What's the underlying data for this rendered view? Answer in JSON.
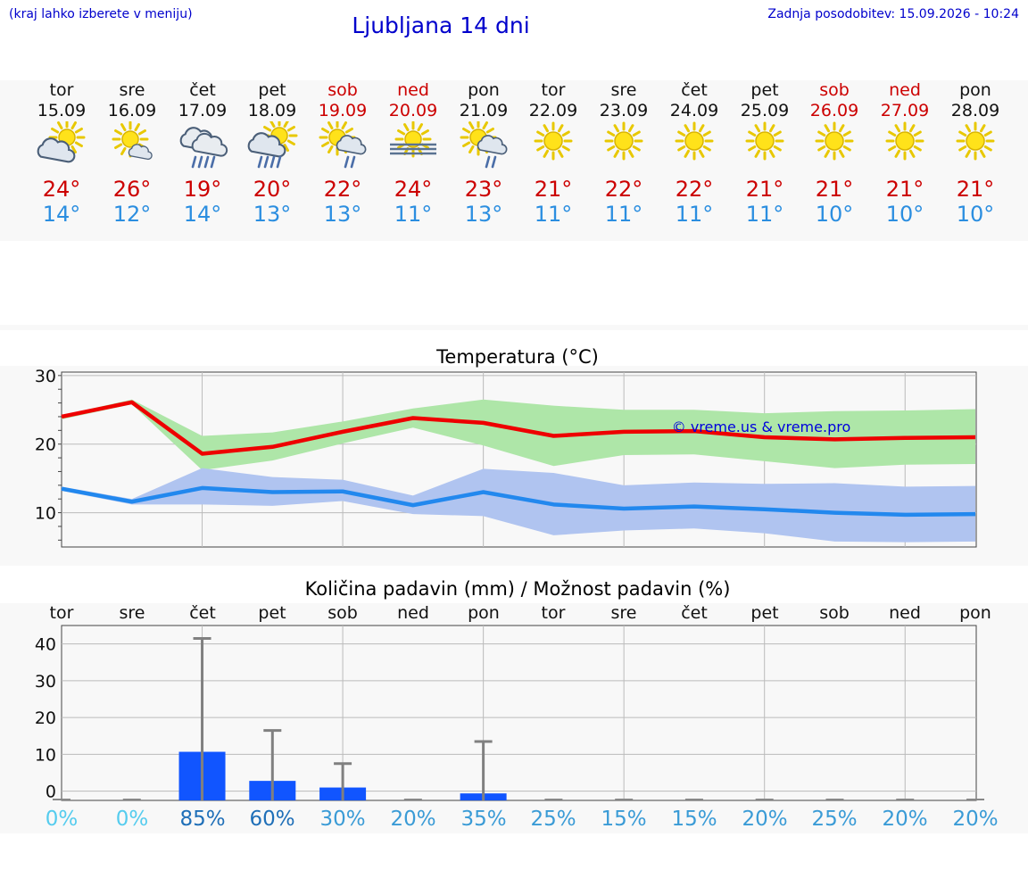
{
  "header": {
    "location_hint": "(kraj lahko izberete v meniju)",
    "title": "Ljubljana 14 dni",
    "last_update": "Zadnja posodobitev: 15.09.2026 - 10:24"
  },
  "days": [
    {
      "name": "tor",
      "date": "15.09",
      "weekend": false,
      "icon": "sun-cloud-icon",
      "tmax": "24°",
      "tmin": "14°",
      "pday": "tor",
      "chance": "0%",
      "pct_color": "#55ccee"
    },
    {
      "name": "sre",
      "date": "16.09",
      "weekend": false,
      "icon": "sun-small-cloud-icon",
      "tmax": "26°",
      "tmin": "12°",
      "pday": "sre",
      "chance": "0%",
      "pct_color": "#55ccee"
    },
    {
      "name": "čet",
      "date": "17.09",
      "weekend": false,
      "icon": "cloud-rain-icon",
      "tmax": "19°",
      "tmin": "14°",
      "pday": "čet",
      "chance": "85%",
      "pct_color": "#1f6fb8"
    },
    {
      "name": "pet",
      "date": "18.09",
      "weekend": false,
      "icon": "sun-cloud-rain-icon",
      "tmax": "20°",
      "tmin": "13°",
      "pday": "pet",
      "chance": "60%",
      "pct_color": "#1f6fb8"
    },
    {
      "name": "sob",
      "date": "19.09",
      "weekend": true,
      "icon": "sun-cloud-light-rain-icon",
      "tmax": "22°",
      "tmin": "13°",
      "pday": "sob",
      "chance": "30%",
      "pct_color": "#3a9bd6"
    },
    {
      "name": "ned",
      "date": "20.09",
      "weekend": true,
      "icon": "sun-fog-icon",
      "tmax": "24°",
      "tmin": "11°",
      "pday": "ned",
      "chance": "20%",
      "pct_color": "#3a9bd6"
    },
    {
      "name": "pon",
      "date": "21.09",
      "weekend": false,
      "icon": "sun-cloud-light-rain-icon",
      "tmax": "23°",
      "tmin": "13°",
      "pday": "pon",
      "chance": "35%",
      "pct_color": "#3a9bd6"
    },
    {
      "name": "tor",
      "date": "22.09",
      "weekend": false,
      "icon": "sun-icon",
      "tmax": "21°",
      "tmin": "11°",
      "pday": "tor",
      "chance": "25%",
      "pct_color": "#3a9bd6"
    },
    {
      "name": "sre",
      "date": "23.09",
      "weekend": false,
      "icon": "sun-icon",
      "tmax": "22°",
      "tmin": "11°",
      "pday": "sre",
      "chance": "15%",
      "pct_color": "#3a9bd6"
    },
    {
      "name": "čet",
      "date": "24.09",
      "weekend": false,
      "icon": "sun-icon",
      "tmax": "22°",
      "tmin": "11°",
      "pday": "čet",
      "chance": "15%",
      "pct_color": "#3a9bd6"
    },
    {
      "name": "pet",
      "date": "25.09",
      "weekend": false,
      "icon": "sun-icon",
      "tmax": "21°",
      "tmin": "11°",
      "pday": "pet",
      "chance": "20%",
      "pct_color": "#3a9bd6"
    },
    {
      "name": "sob",
      "date": "26.09",
      "weekend": true,
      "icon": "sun-icon",
      "tmax": "21°",
      "tmin": "10°",
      "pday": "sob",
      "chance": "25%",
      "pct_color": "#3a9bd6"
    },
    {
      "name": "ned",
      "date": "27.09",
      "weekend": true,
      "icon": "sun-icon",
      "tmax": "21°",
      "tmin": "10°",
      "pday": "ned",
      "chance": "20%",
      "pct_color": "#3a9bd6"
    },
    {
      "name": "pon",
      "date": "28.09",
      "weekend": false,
      "icon": "sun-icon",
      "tmax": "21°",
      "tmin": "10°",
      "pday": "pon",
      "chance": "20%",
      "pct_color": "#3a9bd6"
    }
  ],
  "chart_data": [
    {
      "type": "line",
      "title": "Temperatura (°C)",
      "watermark": "© vreme.us & vreme.pro",
      "ylim": [
        5,
        30.5
      ],
      "yticks": [
        10,
        20,
        30
      ],
      "grid": true,
      "x": [
        "15.09",
        "16.09",
        "17.09",
        "18.09",
        "19.09",
        "20.09",
        "21.09",
        "22.09",
        "23.09",
        "24.09",
        "25.09",
        "26.09",
        "27.09",
        "28.09"
      ],
      "series": [
        {
          "role": "max-band",
          "color": "#aee6a8",
          "upper": [
            24.2,
            26.5,
            21.2,
            21.7,
            23.3,
            25.2,
            26.5,
            25.6,
            25.0,
            25.0,
            24.5,
            24.8,
            24.9,
            25.1
          ],
          "lower": [
            23.6,
            25.8,
            16.2,
            17.6,
            20.1,
            22.4,
            19.8,
            16.8,
            18.4,
            18.5,
            17.5,
            16.5,
            17.0,
            17.1
          ]
        },
        {
          "role": "max",
          "color": "#ee0000",
          "values": [
            24.0,
            26.1,
            18.6,
            19.6,
            21.8,
            23.8,
            23.1,
            21.2,
            21.8,
            21.9,
            21.0,
            20.7,
            20.9,
            21.0
          ]
        },
        {
          "role": "min-band",
          "color": "#b0c4f0",
          "upper": [
            13.8,
            12.0,
            16.5,
            15.2,
            14.8,
            12.5,
            16.4,
            15.8,
            14.0,
            14.4,
            14.2,
            14.3,
            13.8,
            13.9
          ],
          "lower": [
            13.2,
            11.2,
            11.2,
            11.0,
            11.7,
            9.8,
            9.5,
            6.7,
            7.4,
            7.7,
            7.0,
            5.8,
            5.7,
            5.8
          ]
        },
        {
          "role": "min",
          "color": "#2288ee",
          "values": [
            13.5,
            11.6,
            13.6,
            13.0,
            13.1,
            11.1,
            13.0,
            11.2,
            10.6,
            10.9,
            10.5,
            10.0,
            9.7,
            9.8
          ]
        }
      ]
    },
    {
      "type": "bar",
      "title": "Količina padavin (mm) / Možnost padavin (%)",
      "ylim": [
        -2.5,
        45
      ],
      "yticks": [
        0,
        10,
        20,
        30,
        40
      ],
      "grid": true,
      "categories": [
        "tor",
        "sre",
        "čet",
        "pet",
        "sob",
        "ned",
        "pon",
        "tor",
        "sre",
        "čet",
        "pet",
        "sob",
        "ned",
        "pon"
      ],
      "values": [
        0,
        0,
        10.7,
        2.8,
        1.0,
        0,
        -0.6,
        0,
        0,
        0,
        0,
        0,
        0,
        0
      ],
      "error_max": [
        0,
        0,
        41.5,
        16.5,
        7.5,
        0,
        13.5,
        0,
        0,
        0,
        0,
        0,
        0,
        0
      ],
      "chance_percent": [
        0,
        0,
        85,
        60,
        30,
        20,
        35,
        25,
        15,
        15,
        20,
        25,
        20,
        20
      ],
      "bar_color": "#1155ff",
      "error_color": "#808080"
    }
  ]
}
